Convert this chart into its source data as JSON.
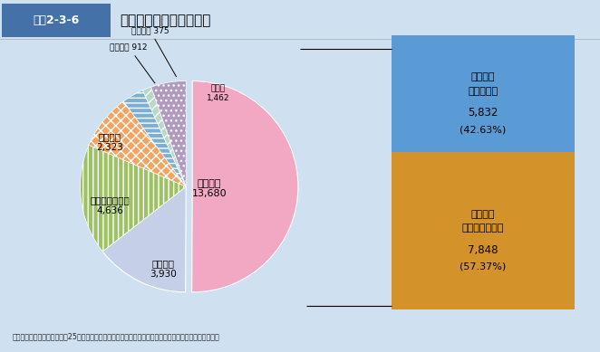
{
  "title_box": "図表2-3-6",
  "title_text": "自殺の原因・動機の割合",
  "background_color": "#cfe0f0",
  "title_bar_color": "#ffffff",
  "title_box_color": "#4472a8",
  "slices": [
    {
      "label": "健康問題",
      "value": 13680,
      "color": "#f2a7c3",
      "hatch": null
    },
    {
      "label": "家庭問題",
      "value": 3930,
      "color": "#c5cfe8",
      "hatch": null
    },
    {
      "label": "経済・生活問題",
      "value": 4636,
      "color": "#9dc165",
      "hatch": "|||"
    },
    {
      "label": "勤務問題",
      "value": 2323,
      "color": "#f4a460",
      "hatch": "xxx"
    },
    {
      "label": "男女問題",
      "value": 912,
      "color": "#7bafd4",
      "hatch": "==="
    },
    {
      "label": "学校問題",
      "value": 375,
      "color": "#b8d8c8",
      "hatch": "///"
    },
    {
      "label": "その他",
      "value": 1462,
      "color": "#b09ac0",
      "hatch": "..."
    }
  ],
  "bar_segments": [
    {
      "label1": "健康問題",
      "label2": "（うつ病）",
      "value": 5832,
      "pct": "42.63%",
      "color": "#5b9bd5"
    },
    {
      "label1": "健康問題",
      "label2": "（うつ病以外）",
      "value": 7848,
      "pct": "57.37%",
      "color": "#d4932a"
    }
  ],
  "source_text": "資料：内閣府・警察庁「平成25年中における自殺の状況」より厚生労働省政策統括官付政策評価官室作成"
}
